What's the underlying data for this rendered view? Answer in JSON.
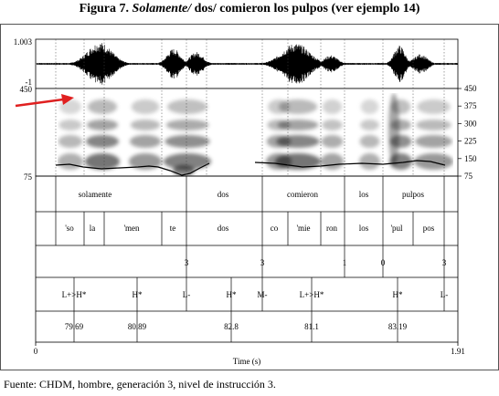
{
  "title": {
    "prefix": "Figura 7.",
    "italic": "Solamente/",
    "rest": "dos/ comieron los pulpos (ver ejemplo 14)"
  },
  "waveform": {
    "top_label": "1.003",
    "bottom_label": "-1"
  },
  "spectrogram": {
    "left_top": "450",
    "left_bottom": "75",
    "right_ticks": [
      "450",
      "375",
      "300",
      "225",
      "150",
      "75"
    ],
    "right_values": [
      450,
      375,
      300,
      225,
      150,
      75
    ]
  },
  "tiers": {
    "words": [
      "solamente",
      "dos",
      "comieron",
      "los",
      "pulpos"
    ],
    "syllables": [
      "'so",
      "la",
      "'men",
      "te",
      "dos",
      "co",
      "'mie",
      "ron",
      "los",
      "'pul",
      "pos"
    ],
    "breaks": [
      "3",
      "3",
      "1",
      "0",
      "3"
    ],
    "tones": [
      "L+>H*",
      "H*",
      "L-",
      "H*",
      "M-",
      "L+>H*",
      "H*",
      "L-"
    ],
    "values": [
      "79.69",
      "80.89",
      "82.8",
      "81.1",
      "83.19"
    ]
  },
  "time_axis": {
    "start": "0",
    "end": "1.91",
    "label": "Time (s)"
  },
  "source": "Fuente: CHDM, hombre, generación 3, nivel de instrucción 3.",
  "colors": {
    "arrow": "#e02020",
    "pitch": "#000000"
  }
}
